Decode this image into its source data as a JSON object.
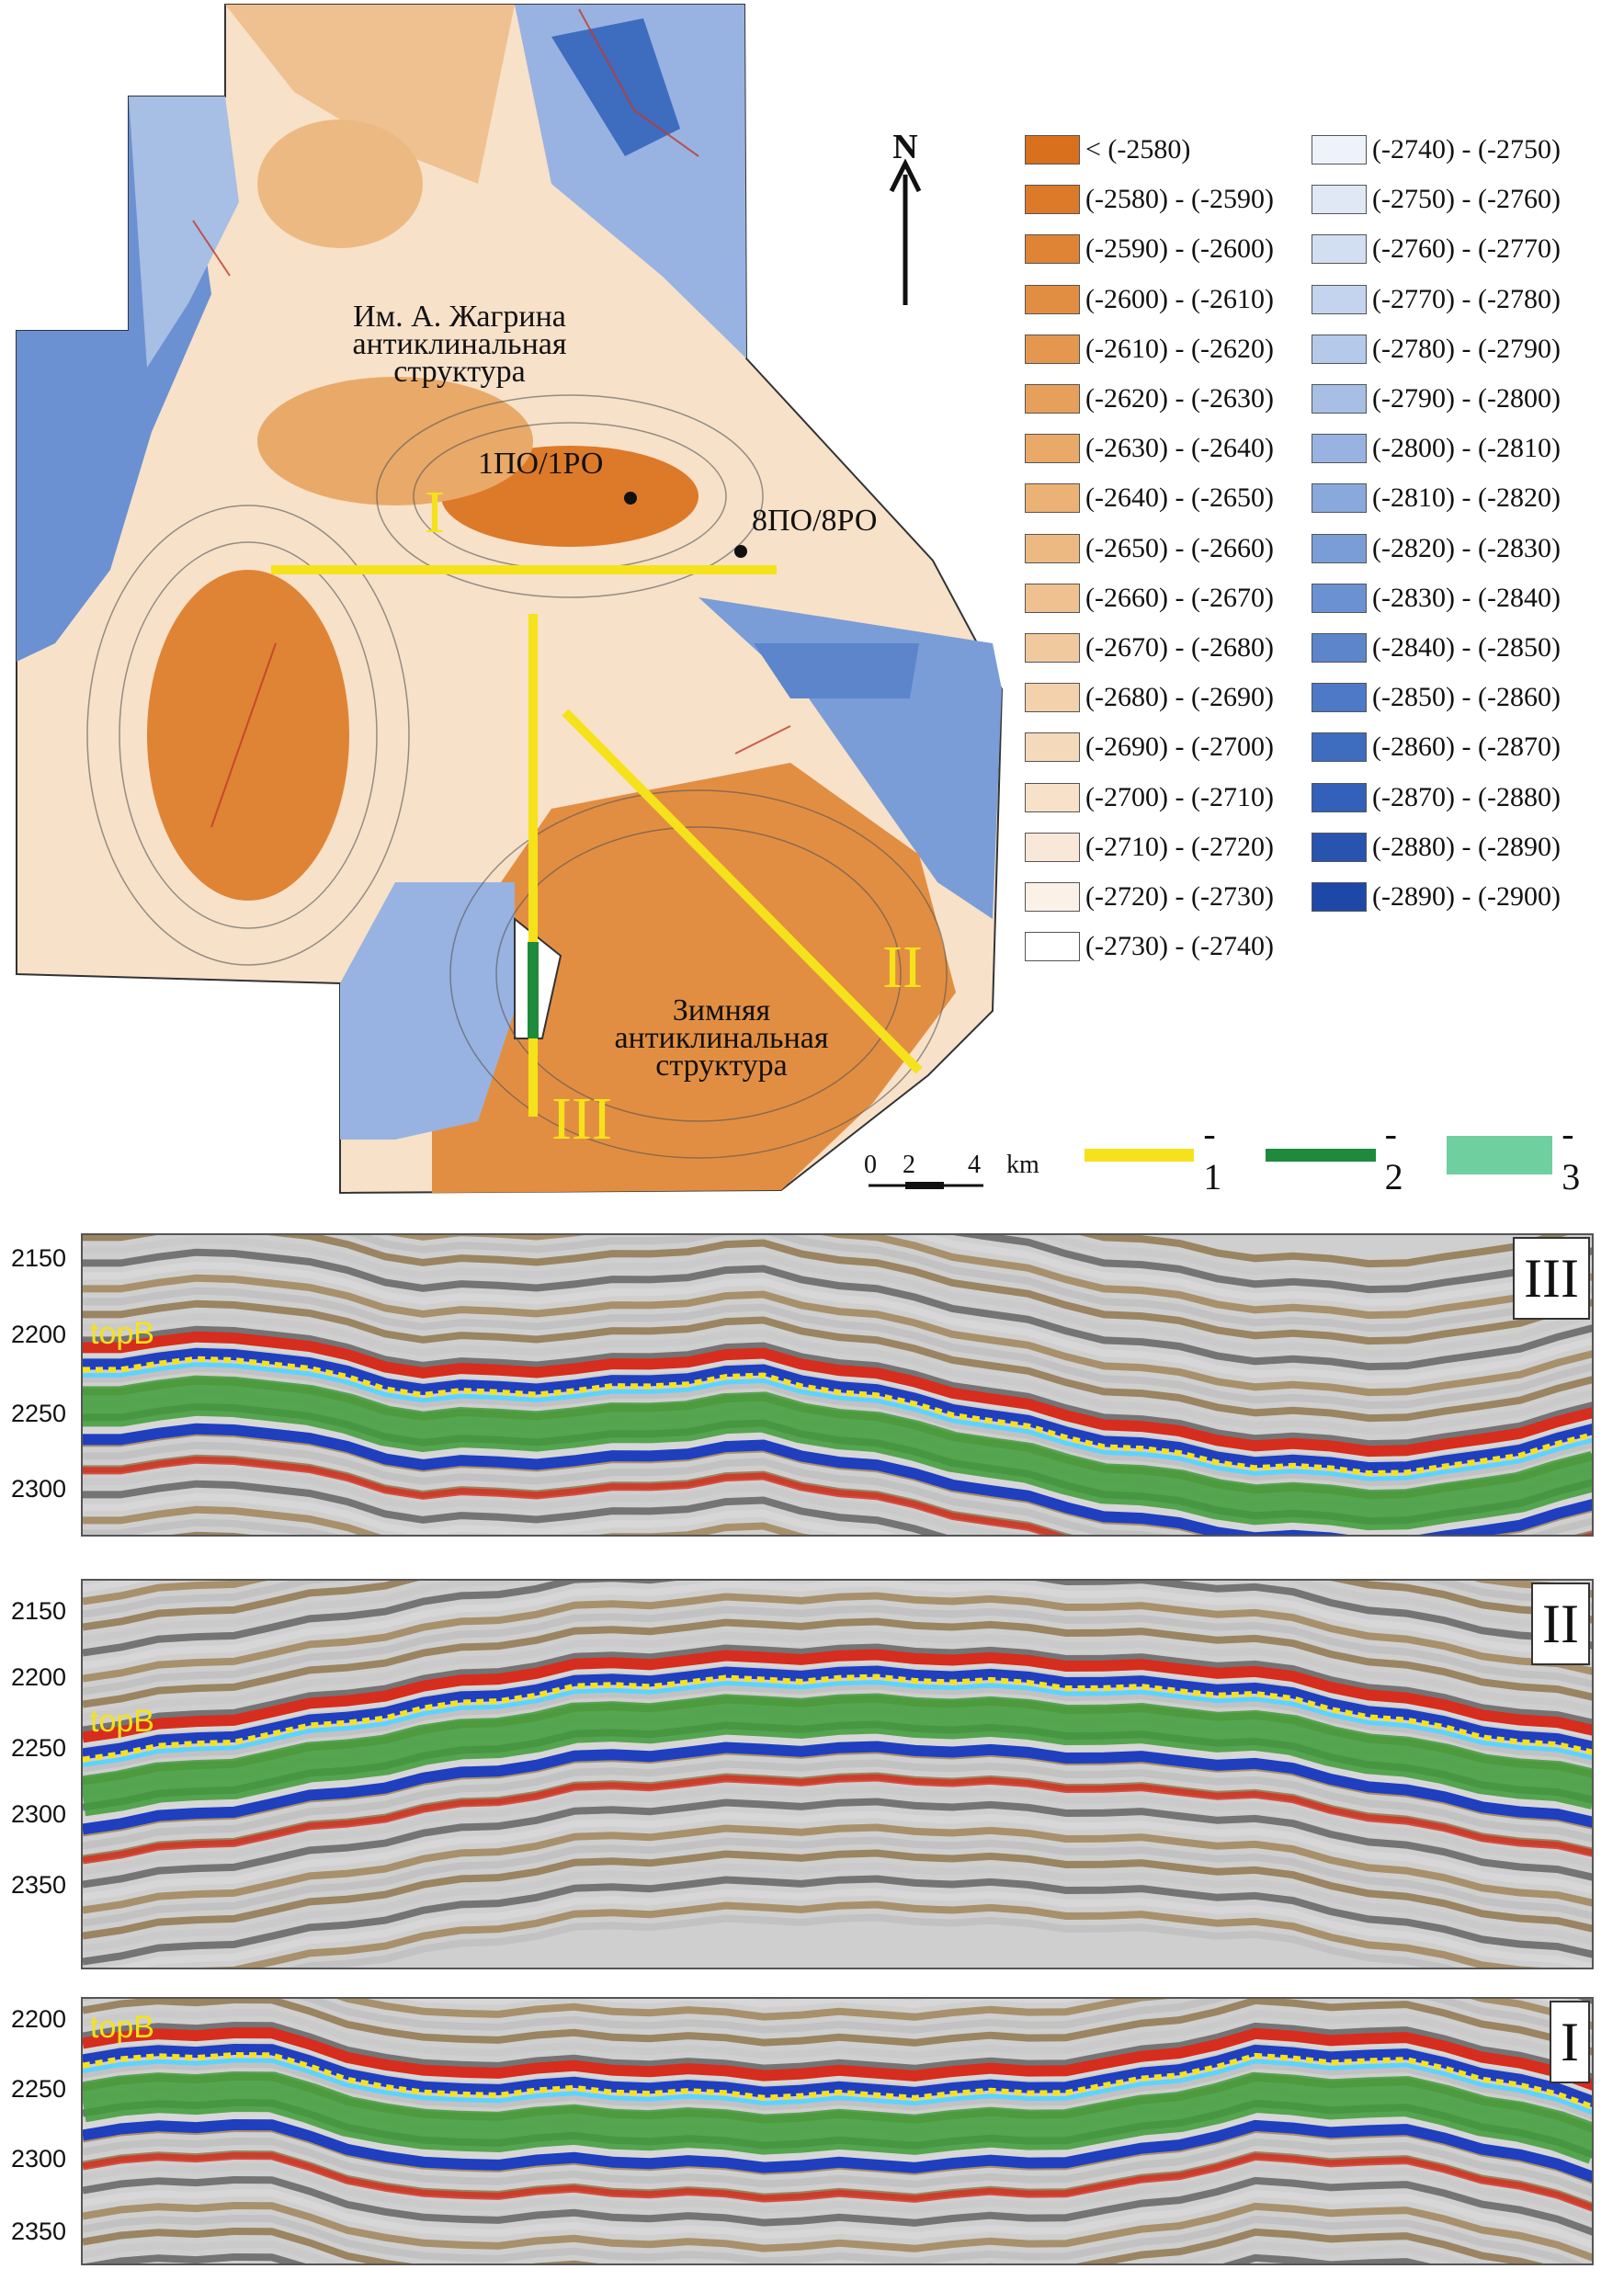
{
  "map": {
    "north_letter": "N",
    "structure_top": [
      "Им. А. Жагрина",
      "антиклинальная",
      "структура"
    ],
    "structure_bottom": [
      "Зимняя",
      "антиклинальная",
      "структура"
    ],
    "wells": [
      "1ПО/1РО",
      "8ПО/8РО"
    ],
    "profile_labels": [
      "I",
      "II",
      "III"
    ],
    "scale": {
      "ticks": [
        "0",
        "2",
        "4"
      ],
      "unit": "km"
    }
  },
  "legend": {
    "left": [
      {
        "label": "< (-2580)",
        "color": "#d9701e"
      },
      {
        "label": "(-2580) - (-2590)",
        "color": "#dc7a2a"
      },
      {
        "label": "(-2590) - (-2600)",
        "color": "#df8435"
      },
      {
        "label": "(-2600) - (-2610)",
        "color": "#e28e42"
      },
      {
        "label": "(-2610) - (-2620)",
        "color": "#e4974e"
      },
      {
        "label": "(-2620) - (-2630)",
        "color": "#e7a05c"
      },
      {
        "label": "(-2630) - (-2640)",
        "color": "#e9a968"
      },
      {
        "label": "(-2640) - (-2650)",
        "color": "#ebb175"
      },
      {
        "label": "(-2650) - (-2660)",
        "color": "#edb982"
      },
      {
        "label": "(-2660) - (-2670)",
        "color": "#efc190"
      },
      {
        "label": "(-2670) - (-2680)",
        "color": "#f1c99e"
      },
      {
        "label": "(-2680) - (-2690)",
        "color": "#f3d1ac"
      },
      {
        "label": "(-2690) - (-2700)",
        "color": "#f5d9bb"
      },
      {
        "label": "(-2700) - (-2710)",
        "color": "#f7e1c9"
      },
      {
        "label": "(-2710) - (-2720)",
        "color": "#f9e8d8"
      },
      {
        "label": "(-2720) - (-2730)",
        "color": "#fbf1e7"
      },
      {
        "label": "(-2730) - (-2740)",
        "color": "#ffffff"
      }
    ],
    "right": [
      {
        "label": "(-2740) - (-2750)",
        "color": "#eef2fa"
      },
      {
        "label": "(-2750) - (-2760)",
        "color": "#e0e8f6"
      },
      {
        "label": "(-2760) - (-2770)",
        "color": "#d2def2"
      },
      {
        "label": "(-2770) - (-2780)",
        "color": "#c4d4ee"
      },
      {
        "label": "(-2780) - (-2790)",
        "color": "#b5c9ea"
      },
      {
        "label": "(-2790) - (-2800)",
        "color": "#a7bee5"
      },
      {
        "label": "(-2800) - (-2810)",
        "color": "#98b3e1"
      },
      {
        "label": "(-2810) - (-2820)",
        "color": "#89a8dc"
      },
      {
        "label": "(-2820) - (-2830)",
        "color": "#7a9dd7"
      },
      {
        "label": "(-2830) - (-2840)",
        "color": "#6b91d2"
      },
      {
        "label": "(-2840) - (-2850)",
        "color": "#5c85cc"
      },
      {
        "label": "(-2850) - (-2860)",
        "color": "#4d79c6"
      },
      {
        "label": "(-2860) - (-2870)",
        "color": "#3e6cbf"
      },
      {
        "label": "(-2870) - (-2880)",
        "color": "#3360b8"
      },
      {
        "label": "(-2880) - (-2890)",
        "color": "#2854b0"
      },
      {
        "label": "(-2890) - (-2900)",
        "color": "#1e48a8"
      }
    ]
  },
  "line_legend": [
    {
      "label": "- 1",
      "color": "#f6e21a",
      "kind": "line"
    },
    {
      "label": "- 2",
      "color": "#1e8a3c",
      "kind": "line"
    },
    {
      "label": "- 3",
      "color": "#6fcf9f",
      "kind": "area"
    }
  ],
  "sections": [
    {
      "id": "III",
      "horizon_label": "topB",
      "y_ticks": [
        "2150",
        "2200",
        "2250",
        "2300"
      ]
    },
    {
      "id": "II",
      "horizon_label": "topB",
      "y_ticks": [
        "2150",
        "2200",
        "2250",
        "2300",
        "2350"
      ]
    },
    {
      "id": "I",
      "horizon_label": "topB",
      "y_ticks": [
        "2200",
        "2250",
        "2300",
        "2350"
      ]
    }
  ]
}
